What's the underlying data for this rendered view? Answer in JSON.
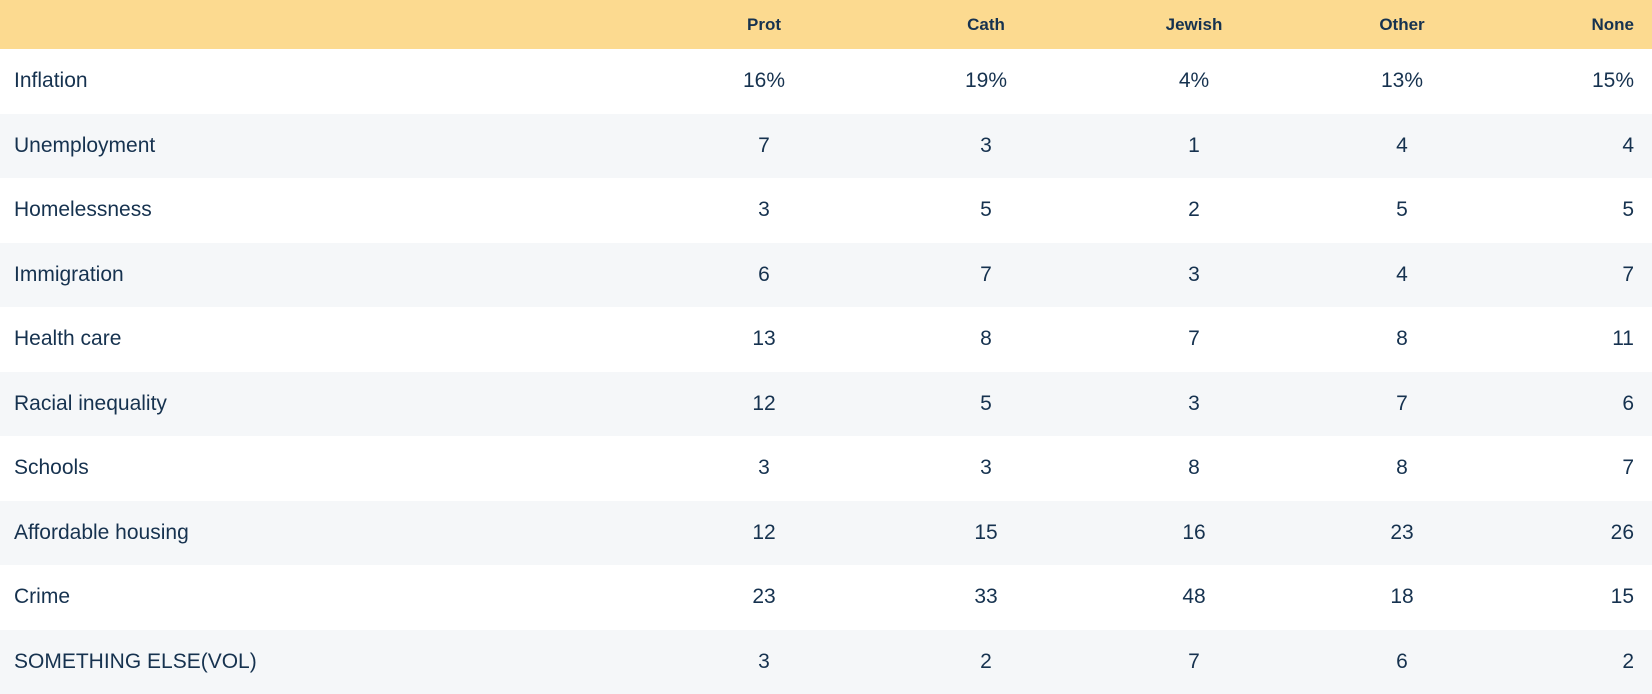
{
  "table": {
    "columns": [
      "Prot",
      "Cath",
      "Jewish",
      "Other",
      "None"
    ],
    "rows": [
      {
        "label": "Inflation",
        "values": [
          "16%",
          "19%",
          "4%",
          "13%",
          "15%"
        ]
      },
      {
        "label": "Unemployment",
        "values": [
          "7",
          "3",
          "1",
          "4",
          "4"
        ]
      },
      {
        "label": "Homelessness",
        "values": [
          "3",
          "5",
          "2",
          "5",
          "5"
        ]
      },
      {
        "label": "Immigration",
        "values": [
          "6",
          "7",
          "3",
          "4",
          "7"
        ]
      },
      {
        "label": "Health care",
        "values": [
          "13",
          "8",
          "7",
          "8",
          "11"
        ]
      },
      {
        "label": "Racial inequality",
        "values": [
          "12",
          "5",
          "3",
          "7",
          "6"
        ]
      },
      {
        "label": "Schools",
        "values": [
          "3",
          "3",
          "8",
          "8",
          "7"
        ]
      },
      {
        "label": "Affordable housing",
        "values": [
          "12",
          "15",
          "16",
          "23",
          "26"
        ]
      },
      {
        "label": "Crime",
        "values": [
          "23",
          "33",
          "48",
          "18",
          "15"
        ]
      },
      {
        "label": "SOMETHING ELSE(VOL)",
        "values": [
          "3",
          "2",
          "7",
          "6",
          "2"
        ]
      }
    ]
  },
  "colors": {
    "header_bg": "#FCDA90",
    "text": "#16324F",
    "row_alt_bg": "#F5F7F9",
    "row_bg": "#FFFFFF"
  },
  "chart_data": {
    "type": "table",
    "title": "",
    "categories": [
      "Inflation",
      "Unemployment",
      "Homelessness",
      "Immigration",
      "Health care",
      "Racial inequality",
      "Schools",
      "Affordable housing",
      "Crime",
      "SOMETHING ELSE(VOL)"
    ],
    "series": [
      {
        "name": "Prot",
        "values": [
          16,
          7,
          3,
          6,
          13,
          12,
          3,
          12,
          23,
          3
        ]
      },
      {
        "name": "Cath",
        "values": [
          19,
          3,
          5,
          7,
          8,
          5,
          3,
          15,
          33,
          2
        ]
      },
      {
        "name": "Jewish",
        "values": [
          4,
          1,
          2,
          3,
          7,
          3,
          8,
          16,
          48,
          7
        ]
      },
      {
        "name": "Other",
        "values": [
          13,
          4,
          5,
          4,
          8,
          7,
          8,
          23,
          18,
          6
        ]
      },
      {
        "name": "None",
        "values": [
          15,
          4,
          5,
          7,
          11,
          6,
          7,
          26,
          15,
          2
        ]
      }
    ],
    "units": "percent",
    "layout_hints": {
      "first_row_has_percent_sign": true,
      "header_background": "#FCDA90",
      "zebra_striping": "even rows light gray"
    }
  }
}
